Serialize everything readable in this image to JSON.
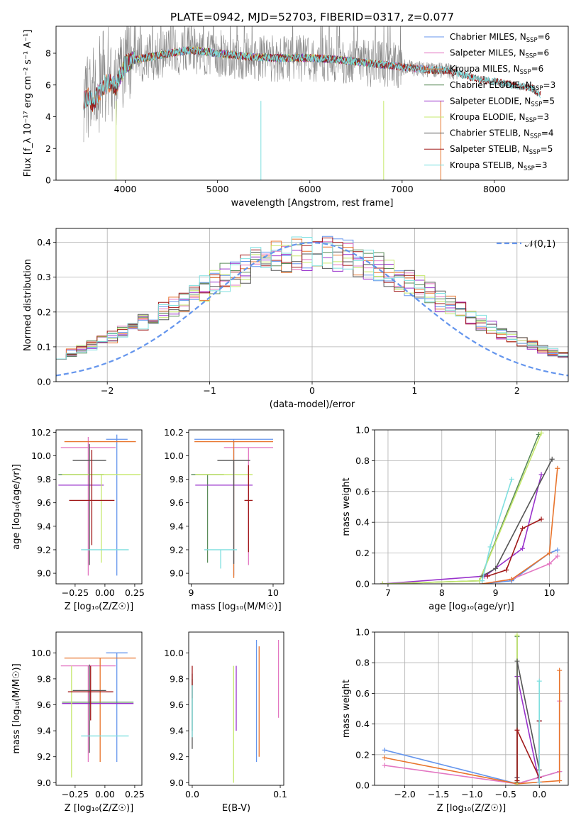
{
  "title": "PLATE=0942, MJD=52703, FIBERID=0317, z=0.077",
  "colors": {
    "Chabrier MILES": "#6495ED",
    "Salpeter MILES": "#E377C2",
    "Kroupa MILES": "#E8742C",
    "Chabrier ELODIE": "#5B8C5A",
    "Salpeter ELODIE": "#9932CC",
    "Kroupa ELODIE": "#C5E86C",
    "Chabrier STELIB": "#555555",
    "Salpeter STELIB": "#A01818",
    "Kroupa STELIB": "#7FDFDF"
  },
  "chart_data": [
    {
      "id": "spectrum",
      "type": "line",
      "xlabel": "wavelength [Angstrom, rest frame]",
      "ylabel": "Flux [f_λ 10⁻¹⁷ erg cm⁻² s⁻¹ A⁻¹]",
      "xlim": [
        3250,
        8800
      ],
      "ylim": [
        0,
        9.7
      ],
      "xticks": [
        4000,
        5000,
        6000,
        7000,
        8000
      ],
      "yticks": [
        0,
        2,
        4,
        6,
        8
      ],
      "legend": "top-right",
      "legend_entries": [
        {
          "model": "Chabrier MILES",
          "label": "Chabrier MILES, N",
          "sub": "SSP",
          "n": "=6"
        },
        {
          "model": "Salpeter MILES",
          "label": "Salpeter MILES, N",
          "sub": "SSP",
          "n": "=6"
        },
        {
          "model": "Kroupa MILES",
          "label": "Kroupa MILES, N",
          "sub": "SSP",
          "n": "=6"
        },
        {
          "model": "Chabrier ELODIE",
          "label": "Chabrier ELODIE, N",
          "sub": "SSP",
          "n": "=3"
        },
        {
          "model": "Salpeter ELODIE",
          "label": "Salpeter ELODIE, N",
          "sub": "SSP",
          "n": "=5"
        },
        {
          "model": "Kroupa ELODIE",
          "label": "Kroupa ELODIE, N",
          "sub": "SSP",
          "n": "=3"
        },
        {
          "model": "Chabrier STELIB",
          "label": "Chabrier STELIB, N",
          "sub": "SSP",
          "n": "=4"
        },
        {
          "model": "Salpeter STELIB",
          "label": "Salpeter STELIB, N",
          "sub": "SSP",
          "n": "=5"
        },
        {
          "model": "Kroupa STELIB",
          "label": "Kroupa STELIB, N",
          "sub": "SSP",
          "n": "=3"
        }
      ],
      "continuum": {
        "wavelength": [
          3550,
          3600,
          3650,
          3700,
          3800,
          3900,
          4000,
          4100,
          4300,
          4500,
          4700,
          5000,
          5300,
          5600,
          6000,
          6300,
          6600,
          6900,
          7200,
          7500,
          7800,
          8100,
          8400,
          8500
        ],
        "flux": [
          5.0,
          5.3,
          4.8,
          5.4,
          6.2,
          5.9,
          7.3,
          7.6,
          7.8,
          8.0,
          8.2,
          8.0,
          7.8,
          7.7,
          7.7,
          7.6,
          7.4,
          7.2,
          7.0,
          6.9,
          6.4,
          6.1,
          5.8,
          5.4
        ]
      }
    },
    {
      "id": "residuals",
      "type": "histogram",
      "xlabel": "(data-model)/error",
      "ylabel": "Normed distribution",
      "xlim": [
        -2.5,
        2.5
      ],
      "ylim": [
        0,
        0.44
      ],
      "xticks": [
        -2,
        -1,
        0,
        1,
        2
      ],
      "yticks": [
        0.0,
        0.1,
        0.2,
        0.3,
        0.4
      ],
      "grid": true,
      "legend": "top-right",
      "reference_curve": {
        "name": "𝒩(0,1)",
        "mu": 0,
        "sigma": 1
      },
      "bin_range": [
        -2.5,
        2.5
      ],
      "bins": 50
    },
    {
      "id": "age-vs-Z",
      "type": "errorbar",
      "xlabel": "Z [log₁₀(Z/Z☉)]",
      "ylabel": "age  [log₁₀(age/yr)]",
      "xlim": [
        -0.41,
        0.31
      ],
      "ylim": [
        8.91,
        10.22
      ],
      "xticks": [
        -0.25,
        0.0,
        0.25
      ],
      "yticks": [
        9.0,
        9.2,
        9.4,
        9.6,
        9.8,
        10.0,
        10.2
      ],
      "points": [
        {
          "model": "Chabrier MILES",
          "x": 0.1,
          "xerr": 0.09,
          "y": 10.14,
          "yerr": [
            1.16,
            0.04
          ]
        },
        {
          "model": "Salpeter MILES",
          "x": -0.14,
          "xerr": 0.23,
          "y": 10.07,
          "yerr": [
            1.09,
            0.09
          ]
        },
        {
          "model": "Kroupa MILES",
          "x": -0.04,
          "xerr": 0.3,
          "y": 10.12,
          "yerr": [
            0.0,
            0.0
          ]
        },
        {
          "model": "Chabrier ELODIE",
          "x": -0.2,
          "xerr": 0.19,
          "y": 9.84,
          "yerr": [
            0.0,
            0.0
          ]
        },
        {
          "model": "Salpeter ELODIE",
          "x": -0.2,
          "xerr": 0.19,
          "y": 9.75,
          "yerr": [
            0.0,
            0.0
          ]
        },
        {
          "model": "Kroupa ELODIE",
          "x": -0.03,
          "xerr": 0.33,
          "y": 9.84,
          "yerr": [
            0.75,
            0.0
          ]
        },
        {
          "model": "Chabrier STELIB",
          "x": -0.13,
          "xerr": 0.14,
          "y": 9.96,
          "yerr": [
            0.89,
            0.14
          ]
        },
        {
          "model": "Salpeter STELIB",
          "x": -0.11,
          "xerr": 0.19,
          "y": 9.62,
          "yerr": [
            0.38,
            0.43
          ]
        },
        {
          "model": "Kroupa STELIB",
          "x": 0.0,
          "xerr": 0.2,
          "y": 9.2,
          "yerr": [
            0.0,
            0.0
          ]
        }
      ]
    },
    {
      "id": "age-vs-mass",
      "type": "errorbar",
      "xlabel": "mass [log₁₀(M/M☉)]",
      "ylabel": "",
      "xlim": [
        8.97,
        10.13
      ],
      "ylim": [
        8.91,
        10.22
      ],
      "xticks": [
        9,
        10
      ],
      "yticks": [
        9.0,
        9.2,
        9.4,
        9.6,
        9.8,
        10.0,
        10.2
      ],
      "points": [
        {
          "model": "Chabrier MILES",
          "x": 9.52,
          "xerr": 0.48,
          "y": 10.14,
          "yerr": [
            1.16,
            0.0
          ]
        },
        {
          "model": "Salpeter MILES",
          "x": 9.7,
          "xerr": 0.3,
          "y": 10.07,
          "yerr": [
            1.0,
            0.0
          ]
        },
        {
          "model": "Kroupa MILES",
          "x": 9.52,
          "xerr": 0.48,
          "y": 10.12,
          "yerr": [
            1.16,
            0.0
          ]
        },
        {
          "model": "Chabrier ELODIE",
          "x": 9.2,
          "xerr": 0.2,
          "y": 9.84,
          "yerr": [
            0.75,
            0.0
          ]
        },
        {
          "model": "Salpeter ELODIE",
          "x": 9.4,
          "xerr": 0.35,
          "y": 9.75,
          "yerr": [
            0.0,
            0.0
          ]
        },
        {
          "model": "Kroupa ELODIE",
          "x": 9.4,
          "xerr": 0.35,
          "y": 9.84,
          "yerr": [
            0.0,
            0.0
          ]
        },
        {
          "model": "Chabrier STELIB",
          "x": 9.52,
          "xerr": 0.2,
          "y": 9.96,
          "yerr": [
            0.88,
            0.0
          ]
        },
        {
          "model": "Salpeter STELIB",
          "x": 9.7,
          "xerr": 0.05,
          "y": 9.62,
          "yerr": [
            0.44,
            0.3
          ]
        },
        {
          "model": "Kroupa STELIB",
          "x": 9.36,
          "xerr": 0.2,
          "y": 9.2,
          "yerr": [
            0.16,
            0.0
          ]
        }
      ]
    },
    {
      "id": "weight-vs-age",
      "type": "line",
      "xlabel": "age  [log₁₀(age/yr)]",
      "ylabel": "mass weight",
      "xlim": [
        6.75,
        10.35
      ],
      "ylim": [
        0,
        1.0
      ],
      "xticks": [
        7,
        8,
        9,
        10
      ],
      "yticks": [
        0.0,
        0.2,
        0.4,
        0.6,
        0.8,
        1.0
      ],
      "grid": true,
      "series": [
        {
          "model": "Chabrier MILES",
          "x": [
            8.75,
            9.3,
            10.0,
            10.15
          ],
          "y": [
            0.0,
            0.02,
            0.2,
            0.22
          ]
        },
        {
          "model": "Salpeter MILES",
          "x": [
            8.75,
            9.3,
            10.0,
            10.15
          ],
          "y": [
            0.0,
            0.03,
            0.13,
            0.18
          ]
        },
        {
          "model": "Kroupa MILES",
          "x": [
            8.75,
            9.3,
            10.0,
            10.15
          ],
          "y": [
            0.0,
            0.03,
            0.2,
            0.75
          ]
        },
        {
          "model": "Chabrier ELODIE",
          "x": [
            6.9,
            8.7,
            9.8
          ],
          "y": [
            0.0,
            0.02,
            0.97
          ]
        },
        {
          "model": "Salpeter ELODIE",
          "x": [
            6.9,
            8.8,
            9.5,
            9.85
          ],
          "y": [
            0.0,
            0.05,
            0.23,
            0.71
          ]
        },
        {
          "model": "Kroupa ELODIE",
          "x": [
            6.9,
            8.7,
            9.85
          ],
          "y": [
            0.0,
            0.02,
            0.98
          ]
        },
        {
          "model": "Chabrier STELIB",
          "x": [
            8.75,
            9.0,
            10.05
          ],
          "y": [
            0.05,
            0.1,
            0.81
          ]
        },
        {
          "model": "Salpeter STELIB",
          "x": [
            8.85,
            9.2,
            9.5,
            9.85
          ],
          "y": [
            0.05,
            0.09,
            0.36,
            0.42
          ]
        },
        {
          "model": "Kroupa STELIB",
          "x": [
            8.75,
            8.9,
            9.3
          ],
          "y": [
            0.02,
            0.24,
            0.68
          ]
        }
      ]
    },
    {
      "id": "mass-vs-Z",
      "type": "errorbar",
      "xlabel": "Z [log₁₀(Z/Z☉)]",
      "ylabel": "mass [log₁₀(M/M☉)]",
      "xlim": [
        -0.41,
        0.31
      ],
      "ylim": [
        8.98,
        10.16
      ],
      "xticks": [
        -0.25,
        0.0,
        0.25
      ],
      "yticks": [
        9.0,
        9.2,
        9.4,
        9.6,
        9.8,
        10.0
      ],
      "points": [
        {
          "model": "Chabrier MILES",
          "x": 0.1,
          "xerr": 0.09,
          "y": 10.0,
          "yerr": [
            0.84,
            0.0
          ]
        },
        {
          "model": "Salpeter MILES",
          "x": -0.14,
          "xerr": 0.23,
          "y": 9.9,
          "yerr": [
            0.74,
            0.0
          ]
        },
        {
          "model": "Kroupa MILES",
          "x": -0.04,
          "xerr": 0.3,
          "y": 9.96,
          "yerr": [
            0.8,
            0.0
          ]
        },
        {
          "model": "Chabrier ELODIE",
          "x": -0.06,
          "xerr": 0.3,
          "y": 9.62,
          "yerr": [
            0.0,
            0.0
          ]
        },
        {
          "model": "Salpeter ELODIE",
          "x": -0.06,
          "xerr": 0.3,
          "y": 9.61,
          "yerr": [
            0.0,
            0.0
          ]
        },
        {
          "model": "Kroupa ELODIE",
          "x": -0.28,
          "xerr": 0.0,
          "y": 9.62,
          "yerr": [
            0.58,
            0.28
          ]
        },
        {
          "model": "Chabrier STELIB",
          "x": -0.13,
          "xerr": 0.14,
          "y": 9.71,
          "yerr": [
            0.48,
            0.2
          ]
        },
        {
          "model": "Salpeter STELIB",
          "x": -0.12,
          "xerr": 0.19,
          "y": 9.7,
          "yerr": [
            0.22,
            0.2
          ]
        },
        {
          "model": "Kroupa STELIB",
          "x": 0.0,
          "xerr": 0.2,
          "y": 9.36,
          "yerr": [
            0.0,
            0.0
          ]
        }
      ]
    },
    {
      "id": "mass-vs-ebv",
      "type": "errorbar",
      "xlabel": "E(B-V)",
      "ylabel": "",
      "xlim": [
        -0.004,
        0.104
      ],
      "ylim": [
        8.98,
        10.16
      ],
      "xticks": [
        0.0,
        0.1
      ],
      "yticks": [
        9.0,
        9.2,
        9.4,
        9.6,
        9.8,
        10.0
      ],
      "points": [
        {
          "model": "Chabrier MILES",
          "x": 0.073,
          "xerr": 0.0,
          "y": 9.6,
          "yerr": [
            0.44,
            0.5
          ]
        },
        {
          "model": "Salpeter MILES",
          "x": 0.098,
          "xerr": 0.0,
          "y": 9.8,
          "yerr": [
            0.3,
            0.3
          ]
        },
        {
          "model": "Kroupa MILES",
          "x": 0.076,
          "xerr": 0.0,
          "y": 9.6,
          "yerr": [
            0.4,
            0.45
          ]
        },
        {
          "model": "Chabrier ELODIE",
          "x": 0.0,
          "xerr": 0.0,
          "y": 9.6,
          "yerr": [
            0.2,
            0.2
          ]
        },
        {
          "model": "Salpeter ELODIE",
          "x": 0.05,
          "xerr": 0.0,
          "y": 9.7,
          "yerr": [
            0.3,
            0.2
          ]
        },
        {
          "model": "Kroupa ELODIE",
          "x": 0.047,
          "xerr": 0.0,
          "y": 9.45,
          "yerr": [
            0.45,
            0.45
          ]
        },
        {
          "model": "Chabrier STELIB",
          "x": 0.0,
          "xerr": 0.0,
          "y": 9.6,
          "yerr": [
            0.34,
            0.24
          ]
        },
        {
          "model": "Salpeter STELIB",
          "x": 0.0,
          "xerr": 0.0,
          "y": 9.78,
          "yerr": [
            0.13,
            0.12
          ]
        },
        {
          "model": "Kroupa STELIB",
          "x": 0.0,
          "xerr": 0.0,
          "y": 9.55,
          "yerr": [
            0.2,
            0.2
          ]
        }
      ]
    },
    {
      "id": "weight-vs-Z",
      "type": "line",
      "xlabel": "Z [log₁₀(Z/Z☉)]",
      "ylabel": "mass weight",
      "xlim": [
        -2.45,
        0.43
      ],
      "ylim": [
        0,
        1.0
      ],
      "xticks": [
        -2.0,
        -1.5,
        -1.0,
        -0.5,
        0.0
      ],
      "yticks": [
        0.0,
        0.2,
        0.4,
        0.6,
        0.8,
        1.0
      ],
      "grid": true,
      "series": [
        {
          "model": "Chabrier MILES",
          "x": [
            -2.3,
            -0.33,
            0.3,
            0.3
          ],
          "y": [
            0.23,
            0.01,
            0.09,
            0.09
          ]
        },
        {
          "model": "Salpeter MILES",
          "x": [
            -2.3,
            -0.33,
            0.3,
            0.3
          ],
          "y": [
            0.13,
            0.01,
            0.09,
            0.55
          ]
        },
        {
          "model": "Kroupa MILES",
          "x": [
            -2.3,
            -0.33,
            0.3,
            0.3
          ],
          "y": [
            0.18,
            0.01,
            0.03,
            0.75
          ]
        },
        {
          "model": "Chabrier ELODIE",
          "x": [
            -0.33,
            -0.33
          ],
          "y": [
            0.02,
            0.97
          ]
        },
        {
          "model": "Salpeter ELODIE",
          "x": [
            -0.33,
            -0.33,
            0.0,
            0.0
          ],
          "y": [
            0.05,
            0.71,
            0.02,
            0.42
          ]
        },
        {
          "model": "Kroupa ELODIE",
          "x": [
            -0.33,
            -0.33
          ],
          "y": [
            0.0,
            0.98
          ]
        },
        {
          "model": "Chabrier STELIB",
          "x": [
            -0.33,
            -0.33,
            0.0,
            0.0
          ],
          "y": [
            0.05,
            0.81,
            0.1,
            0.42
          ]
        },
        {
          "model": "Salpeter STELIB",
          "x": [
            -0.33,
            -0.33,
            0.0,
            0.0
          ],
          "y": [
            0.03,
            0.36,
            0.05,
            0.42
          ]
        },
        {
          "model": "Kroupa STELIB",
          "x": [
            0.0,
            0.0
          ],
          "y": [
            0.02,
            0.68
          ]
        }
      ]
    }
  ]
}
